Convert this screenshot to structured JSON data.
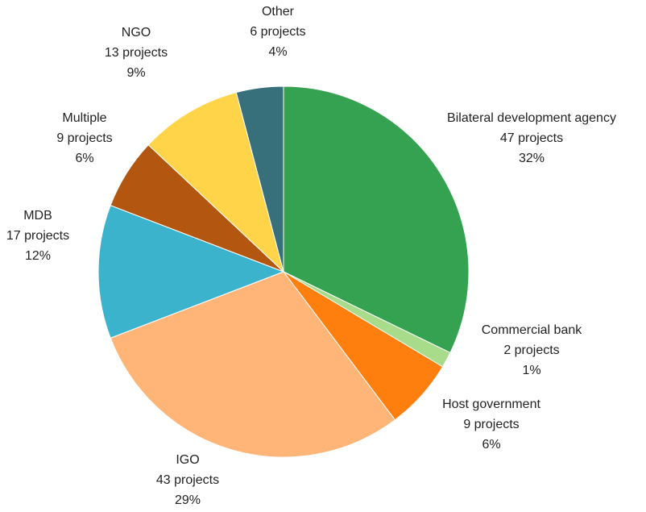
{
  "chart_data": {
    "type": "pie",
    "title": "",
    "slices": [
      {
        "label": "Bilateral development agency",
        "count_text": "47 projects",
        "pct_text": "32%",
        "value": 47,
        "color": "#34a250"
      },
      {
        "label": "Commercial bank",
        "count_text": "2 projects",
        "pct_text": "1%",
        "value": 2,
        "color": "#a8db8a"
      },
      {
        "label": "Host government",
        "count_text": "9 projects",
        "pct_text": "6%",
        "value": 9,
        "color": "#ff7f0e"
      },
      {
        "label": "IGO",
        "count_text": "43 projects",
        "pct_text": "29%",
        "value": 43,
        "color": "#ffb577"
      },
      {
        "label": "MDB",
        "count_text": "17 projects",
        "pct_text": "12%",
        "value": 17,
        "color": "#3bb3cc"
      },
      {
        "label": "Multiple",
        "count_text": "9 projects",
        "pct_text": "6%",
        "value": 9,
        "color": "#b3560f"
      },
      {
        "label": "NGO",
        "count_text": "13 projects",
        "pct_text": "9%",
        "value": 13,
        "color": "#ffd449"
      },
      {
        "label": "Other",
        "count_text": "6 projects",
        "pct_text": "4%",
        "value": 6,
        "color": "#37707b"
      }
    ],
    "start_angle_deg": 0,
    "direction": "clockwise",
    "legend": "none",
    "label_placement": "outside"
  }
}
